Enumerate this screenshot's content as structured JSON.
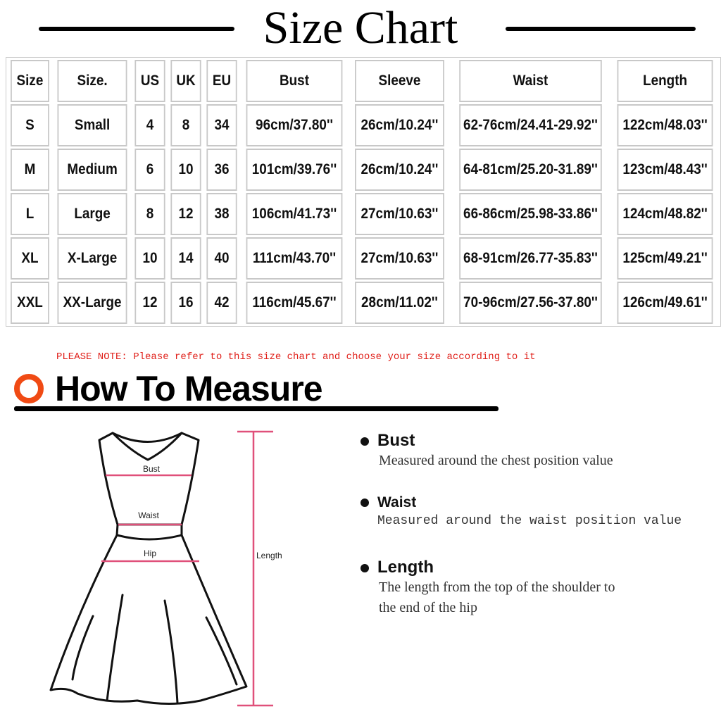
{
  "title": "Size Chart",
  "table": {
    "headers": [
      "Size",
      "Size.",
      "US",
      "UK",
      "EU",
      "Bust",
      "Sleeve",
      "Waist",
      "Length"
    ],
    "rows": [
      [
        "S",
        "Small",
        "4",
        "8",
        "34",
        "96cm/37.80''",
        "26cm/10.24''",
        "62-76cm/24.41-29.92''",
        "122cm/48.03''"
      ],
      [
        "M",
        "Medium",
        "6",
        "10",
        "36",
        "101cm/39.76''",
        "26cm/10.24''",
        "64-81cm/25.20-31.89''",
        "123cm/48.43''"
      ],
      [
        "L",
        "Large",
        "8",
        "12",
        "38",
        "106cm/41.73''",
        "27cm/10.63''",
        "66-86cm/25.98-33.86''",
        "124cm/48.82''"
      ],
      [
        "XL",
        "X-Large",
        "10",
        "14",
        "40",
        "111cm/43.70''",
        "27cm/10.63''",
        "68-91cm/26.77-35.83''",
        "125cm/49.21''"
      ],
      [
        "XXL",
        "XX-Large",
        "12",
        "16",
        "42",
        "116cm/45.67''",
        "28cm/11.02''",
        "70-96cm/27.56-37.80''",
        "126cm/49.61''"
      ]
    ]
  },
  "note": "PLEASE NOTE: Please refer to this size chart and choose your size according to it",
  "how_to": {
    "title": "How To Measure",
    "diagram_labels": {
      "bust": "Bust",
      "waist": "Waist",
      "hip": "Hip",
      "length": "Length"
    },
    "items": [
      {
        "heading": "Bust",
        "lines": [
          "Measured around the chest position value"
        ]
      },
      {
        "heading": "Waist",
        "lines": [
          "Measured around the waist position value"
        ]
      },
      {
        "heading": "Length",
        "lines": [
          "The length from the top of the shoulder to",
          "the end of the hip"
        ]
      }
    ]
  },
  "colors": {
    "accent": "#f04a14",
    "note": "#e0201a",
    "measure_line": "#e0507a"
  }
}
